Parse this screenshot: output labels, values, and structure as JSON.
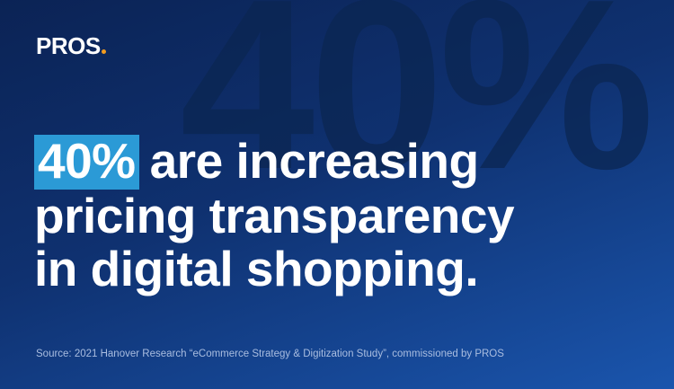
{
  "logo": "PROS",
  "background_figure": "40%",
  "headline": {
    "highlight": "40%",
    "lines": [
      "are increasing",
      "pricing transparency",
      "in digital shopping."
    ]
  },
  "source": "Source: 2021 Hanover Research “eCommerce Strategy & Digitization Study”, commissioned by PROS"
}
